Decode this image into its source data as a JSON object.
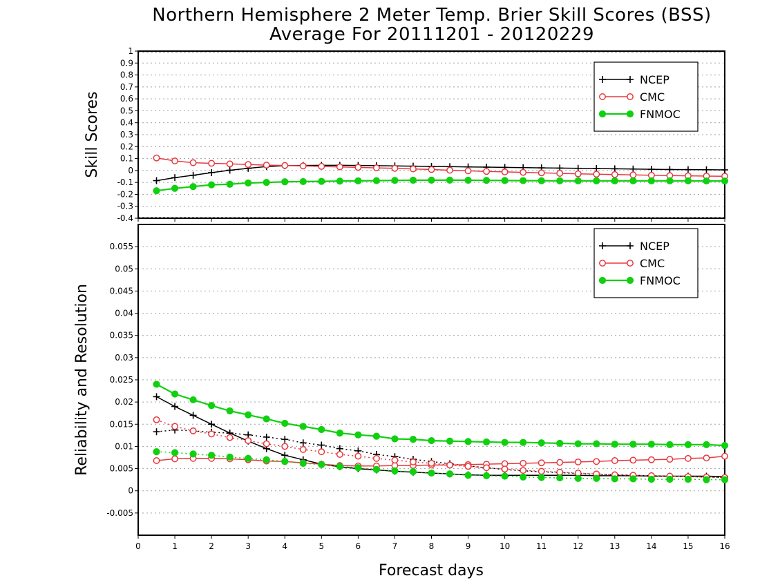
{
  "title_line1": "Northern Hemisphere 2 Meter Temp. Brier Skill Scores (BSS)",
  "title_line2": "Average For 20111201 - 20120229",
  "xlabel": "Forecast days",
  "colors": {
    "NCEP": "#000000",
    "CMC": "#e8383d",
    "FNMOC": "#10d010",
    "grid": "#a0a0a0"
  },
  "chart_data": [
    {
      "type": "line",
      "ylabel": "Skill Scores",
      "xlim": [
        0,
        16
      ],
      "ylim": [
        -0.4,
        1
      ],
      "x_ticks": [
        0,
        1,
        2,
        3,
        4,
        5,
        6,
        7,
        8,
        9,
        10,
        11,
        12,
        13,
        14,
        15,
        16
      ],
      "y_ticks": [
        -0.4,
        -0.3,
        -0.2,
        -0.1,
        0,
        0.1,
        0.2,
        0.3,
        0.4,
        0.5,
        0.6,
        0.7,
        0.8,
        0.9,
        1
      ],
      "y_tick_labels": [
        "-0.4",
        "-0.3",
        "-0.2",
        "-0.1",
        "0",
        "0.1",
        "0.2",
        "0.3",
        "0.4",
        "0.5",
        "0.6",
        "0.7",
        "0.8",
        "0.9",
        "1"
      ],
      "grid": true,
      "legend_position": "top-right",
      "x": [
        0.5,
        1,
        1.5,
        2,
        2.5,
        3,
        3.5,
        4,
        4.5,
        5,
        5.5,
        6,
        6.5,
        7,
        7.5,
        8,
        8.5,
        9,
        9.5,
        10,
        10.5,
        11,
        11.5,
        12,
        12.5,
        13,
        13.5,
        14,
        14.5,
        15,
        15.5,
        16
      ],
      "series": [
        {
          "name": "NCEP",
          "marker": "plus",
          "style": "solid",
          "values": [
            -0.085,
            -0.06,
            -0.04,
            -0.018,
            0.002,
            0.018,
            0.033,
            0.04,
            0.042,
            0.043,
            0.043,
            0.042,
            0.04,
            0.038,
            0.036,
            0.034,
            0.032,
            0.03,
            0.028,
            0.026,
            0.024,
            0.022,
            0.02,
            0.018,
            0.016,
            0.014,
            0.012,
            0.01,
            0.008,
            0.007,
            0.006,
            0.005
          ]
        },
        {
          "name": "CMC",
          "marker": "open-circle",
          "style": "solid",
          "values": [
            0.105,
            0.08,
            0.065,
            0.06,
            0.055,
            0.05,
            0.045,
            0.042,
            0.038,
            0.034,
            0.03,
            0.026,
            0.022,
            0.018,
            0.013,
            0.008,
            0.002,
            -0.003,
            -0.008,
            -0.012,
            -0.016,
            -0.02,
            -0.024,
            -0.028,
            -0.031,
            -0.034,
            -0.037,
            -0.04,
            -0.043,
            -0.045,
            -0.047,
            -0.048
          ]
        },
        {
          "name": "FNMOC",
          "marker": "filled-circle",
          "style": "solid",
          "values": [
            -0.17,
            -0.15,
            -0.135,
            -0.12,
            -0.115,
            -0.105,
            -0.1,
            -0.095,
            -0.093,
            -0.091,
            -0.089,
            -0.087,
            -0.085,
            -0.083,
            -0.082,
            -0.081,
            -0.081,
            -0.082,
            -0.083,
            -0.084,
            -0.085,
            -0.086,
            -0.087,
            -0.087,
            -0.087,
            -0.087,
            -0.087,
            -0.087,
            -0.087,
            -0.087,
            -0.088,
            -0.088
          ]
        }
      ]
    },
    {
      "type": "line",
      "ylabel": "Reliability and Resolution",
      "xlim": [
        0,
        16
      ],
      "ylim": [
        -0.01,
        0.06
      ],
      "x_ticks": [
        0,
        1,
        2,
        3,
        4,
        5,
        6,
        7,
        8,
        9,
        10,
        11,
        12,
        13,
        14,
        15,
        16
      ],
      "y_ticks": [
        -0.005,
        0,
        0.005,
        0.01,
        0.015,
        0.02,
        0.025,
        0.03,
        0.035,
        0.04,
        0.045,
        0.05,
        0.055
      ],
      "y_tick_labels": [
        "-0.005",
        "0",
        "0.005",
        "0.01",
        "0.015",
        "0.02",
        "0.025",
        "0.03",
        "0.035",
        "0.04",
        "0.045",
        "0.05",
        "0.055"
      ],
      "grid": true,
      "legend_position": "top-right",
      "x": [
        0.5,
        1,
        1.5,
        2,
        2.5,
        3,
        3.5,
        4,
        4.5,
        5,
        5.5,
        6,
        6.5,
        7,
        7.5,
        8,
        8.5,
        9,
        9.5,
        10,
        10.5,
        11,
        11.5,
        12,
        12.5,
        13,
        13.5,
        14,
        14.5,
        15,
        15.5,
        16
      ],
      "legend": [
        "NCEP",
        "CMC",
        "FNMOC"
      ],
      "series": [
        {
          "name": "NCEP",
          "marker": "plus",
          "style": "solid",
          "values": [
            0.0212,
            0.019,
            0.017,
            0.015,
            0.013,
            0.0112,
            0.0095,
            0.008,
            0.007,
            0.006,
            0.0054,
            0.005,
            0.0047,
            0.0044,
            0.0042,
            0.004,
            0.0038,
            0.0036,
            0.0035,
            0.0035,
            0.0035,
            0.0035,
            0.0035,
            0.0035,
            0.0034,
            0.0034,
            0.0034,
            0.0033,
            0.0033,
            0.0033,
            0.0033,
            0.0032
          ]
        },
        {
          "marker": "plus",
          "style": "dotted",
          "values": [
            0.0133,
            0.0137,
            0.0135,
            0.0132,
            0.013,
            0.0126,
            0.0121,
            0.0116,
            0.0108,
            0.0103,
            0.0095,
            0.009,
            0.0082,
            0.0077,
            0.0071,
            0.0066,
            0.0061,
            0.0056,
            0.0052,
            0.0048,
            0.0045,
            0.0043,
            0.0041,
            0.0039,
            0.0037,
            0.0036,
            0.0035,
            0.0034,
            0.0033,
            0.0032,
            0.0031,
            0.003
          ]
        },
        {
          "name": "CMC",
          "marker": "open-circle",
          "style": "solid",
          "values": [
            0.0068,
            0.0072,
            0.0073,
            0.0073,
            0.0072,
            0.007,
            0.0067,
            0.0066,
            0.0063,
            0.006,
            0.0057,
            0.0056,
            0.0056,
            0.0057,
            0.0057,
            0.0058,
            0.0058,
            0.0059,
            0.006,
            0.0061,
            0.0062,
            0.0063,
            0.0064,
            0.0065,
            0.0066,
            0.0068,
            0.0069,
            0.007,
            0.0071,
            0.0073,
            0.0074,
            0.0078
          ]
        },
        {
          "marker": "open-circle",
          "style": "dotted",
          "values": [
            0.016,
            0.0145,
            0.0135,
            0.0128,
            0.012,
            0.0113,
            0.0106,
            0.01,
            0.0093,
            0.0088,
            0.0082,
            0.0078,
            0.0073,
            0.0069,
            0.0065,
            0.0062,
            0.0058,
            0.0055,
            0.0052,
            0.0049,
            0.0046,
            0.0044,
            0.0042,
            0.004,
            0.0038,
            0.0036,
            0.0035,
            0.0034,
            0.0033,
            0.0032,
            0.0031,
            0.003
          ]
        },
        {
          "name": "FNMOC",
          "marker": "filled-circle",
          "style": "solid",
          "values": [
            0.024,
            0.0218,
            0.0205,
            0.0192,
            0.018,
            0.0171,
            0.0162,
            0.0152,
            0.0145,
            0.0138,
            0.013,
            0.0126,
            0.0123,
            0.0117,
            0.0116,
            0.0113,
            0.0112,
            0.0111,
            0.011,
            0.0109,
            0.0109,
            0.0108,
            0.0107,
            0.0106,
            0.0106,
            0.0105,
            0.0105,
            0.0105,
            0.0104,
            0.0104,
            0.0104,
            0.0102
          ]
        },
        {
          "marker": "filled-circle",
          "style": "dotted",
          "values": [
            0.0088,
            0.0086,
            0.0083,
            0.008,
            0.0076,
            0.0073,
            0.007,
            0.0066,
            0.0062,
            0.0059,
            0.0055,
            0.0052,
            0.0048,
            0.0045,
            0.0043,
            0.004,
            0.0038,
            0.0035,
            0.0034,
            0.0033,
            0.0031,
            0.003,
            0.0029,
            0.0028,
            0.0028,
            0.0027,
            0.0027,
            0.0026,
            0.0026,
            0.0026,
            0.0025,
            0.0025
          ]
        }
      ]
    }
  ]
}
